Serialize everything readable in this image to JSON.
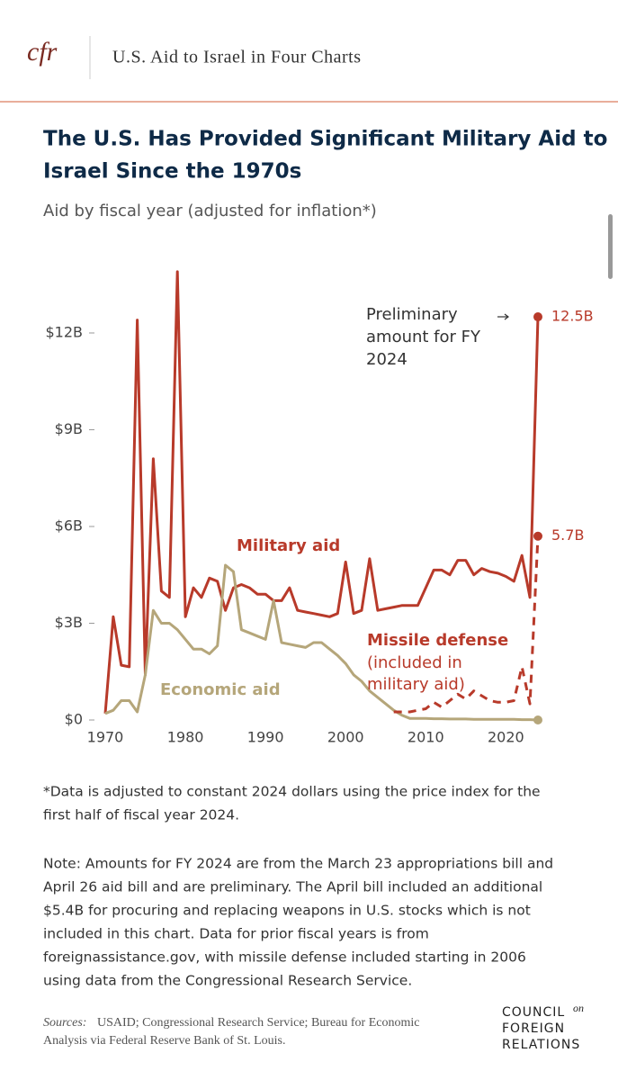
{
  "header": {
    "logo": "cfr",
    "title": "U.S. Aid to Israel in Four Charts"
  },
  "chart_data": {
    "type": "line",
    "title": [
      "The U.S. Has Provided Significant Military Aid to",
      "Israel Since the 1970s"
    ],
    "subtitle": "Aid by fiscal year (adjusted for inflation*)",
    "x": [
      1970,
      1971,
      1972,
      1973,
      1974,
      1975,
      1976,
      1977,
      1978,
      1979,
      1980,
      1981,
      1982,
      1983,
      1984,
      1985,
      1986,
      1987,
      1988,
      1989,
      1990,
      1991,
      1992,
      1993,
      1994,
      1995,
      1996,
      1997,
      1998,
      1999,
      2000,
      2001,
      2002,
      2003,
      2004,
      2005,
      2006,
      2007,
      2008,
      2009,
      2010,
      2011,
      2012,
      2013,
      2014,
      2015,
      2016,
      2017,
      2018,
      2019,
      2020,
      2021,
      2022,
      2023,
      2024
    ],
    "series": [
      {
        "name": "Military aid",
        "color": "#b83a2a",
        "dash": false,
        "values": [
          0.2,
          3.2,
          1.7,
          1.65,
          12.4,
          1.4,
          8.1,
          4.0,
          3.8,
          13.9,
          3.2,
          4.1,
          3.8,
          4.4,
          4.3,
          3.4,
          4.1,
          4.2,
          4.1,
          3.9,
          3.9,
          3.7,
          3.7,
          4.1,
          3.4,
          3.35,
          3.3,
          3.25,
          3.2,
          3.3,
          4.9,
          3.3,
          3.4,
          5.0,
          3.4,
          3.45,
          3.5,
          3.55,
          3.55,
          3.55,
          4.1,
          4.65,
          4.65,
          4.5,
          4.95,
          4.95,
          4.5,
          4.7,
          4.6,
          4.55,
          4.45,
          4.3,
          5.1,
          3.8,
          12.5
        ],
        "value_labels": [
          null,
          null,
          null,
          null,
          null,
          null,
          null,
          null,
          null,
          null,
          null,
          null,
          null,
          null,
          null,
          null,
          null,
          null,
          null,
          null,
          null,
          null,
          null,
          null,
          null,
          null,
          null,
          null,
          null,
          null,
          null,
          null,
          null,
          null,
          null,
          null,
          null,
          null,
          null,
          null,
          null,
          null,
          null,
          null,
          null,
          null,
          null,
          null,
          null,
          null,
          null,
          null,
          null,
          null,
          "12.5B"
        ]
      },
      {
        "name": "Economic aid",
        "color": "#b5a67a",
        "dash": false,
        "values": [
          0.2,
          0.3,
          0.6,
          0.6,
          0.25,
          1.4,
          3.4,
          3.0,
          3.0,
          2.8,
          2.5,
          2.2,
          2.2,
          2.05,
          2.3,
          4.8,
          4.6,
          2.8,
          2.7,
          2.6,
          2.5,
          3.7,
          2.4,
          2.35,
          2.3,
          2.25,
          2.4,
          2.4,
          2.2,
          2.0,
          1.75,
          1.4,
          1.2,
          0.9,
          0.7,
          0.5,
          0.3,
          0.15,
          0.05,
          0.05,
          0.05,
          0.04,
          0.04,
          0.03,
          0.03,
          0.03,
          0.02,
          0.02,
          0.02,
          0.02,
          0.02,
          0.02,
          0.01,
          0.01,
          0
        ]
      },
      {
        "name": "Missile defense",
        "name_note": [
          "(included in",
          "military aid)"
        ],
        "color": "#b83a2a",
        "dash": true,
        "values": [
          null,
          null,
          null,
          null,
          null,
          null,
          null,
          null,
          null,
          null,
          null,
          null,
          null,
          null,
          null,
          null,
          null,
          null,
          null,
          null,
          null,
          null,
          null,
          null,
          null,
          null,
          null,
          null,
          null,
          null,
          null,
          null,
          null,
          null,
          null,
          null,
          0.25,
          0.25,
          0.25,
          0.3,
          0.35,
          0.55,
          0.4,
          0.6,
          0.8,
          0.65,
          0.9,
          0.75,
          0.6,
          0.55,
          0.55,
          0.6,
          1.65,
          0.5,
          5.7
        ],
        "value_labels": [
          null,
          null,
          null,
          null,
          null,
          null,
          null,
          null,
          null,
          null,
          null,
          null,
          null,
          null,
          null,
          null,
          null,
          null,
          null,
          null,
          null,
          null,
          null,
          null,
          null,
          null,
          null,
          null,
          null,
          null,
          null,
          null,
          null,
          null,
          null,
          null,
          null,
          null,
          null,
          null,
          null,
          null,
          null,
          null,
          null,
          null,
          null,
          null,
          null,
          null,
          null,
          null,
          null,
          null,
          "5.7B"
        ]
      }
    ],
    "annotation": [
      "Preliminary",
      "amount for FY",
      "2024"
    ],
    "xlim": [
      1970,
      2024
    ],
    "xticks": [
      1970,
      1980,
      1990,
      2000,
      2010,
      2020
    ],
    "ylim": [
      0,
      14
    ],
    "yticks": [
      {
        "value": 0,
        "label": "$0"
      },
      {
        "value": 3,
        "label": "$3B"
      },
      {
        "value": 6,
        "label": "$6B"
      },
      {
        "value": 9,
        "label": "$9B"
      },
      {
        "value": 12,
        "label": "$12B"
      }
    ],
    "grid": false
  },
  "footnote": [
    "*Data is adjusted to constant 2024 dollars using the price index for the",
    "first half of fiscal year 2024."
  ],
  "note": [
    "Note: Amounts for FY 2024 are from the March 23 appropriations bill and",
    "April 26 aid bill and are preliminary. The April bill included an additional",
    "$5.4B for procuring and replacing weapons in U.S. stocks which is not",
    "included in this chart. Data for prior fiscal years is from",
    "foreignassistance.gov, with missile defense included starting in 2006",
    "using data from the Congressional Research Service."
  ],
  "sources": {
    "label": "Sources:",
    "lines": [
      " USAID; Congressional Research Service; Bureau for Economic",
      "Analysis via Federal Reserve Bank of St. Louis."
    ]
  },
  "footer_logo": [
    "COUNCIL",
    "on",
    "FOREIGN",
    "RELATIONS"
  ]
}
